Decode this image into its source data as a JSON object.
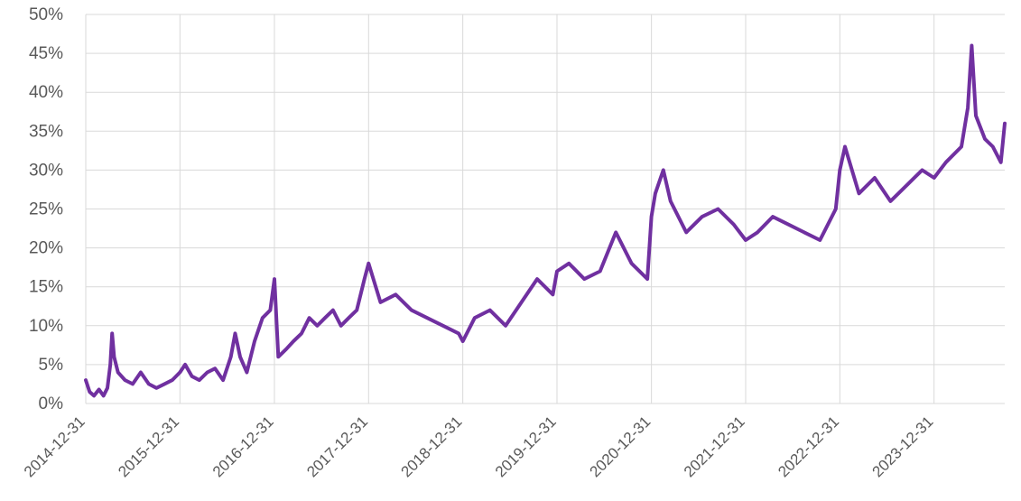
{
  "chart_data": {
    "type": "line",
    "title": "",
    "xlabel": "",
    "ylabel": "",
    "x_tick_labels": [
      "2014-12-31",
      "2015-12-31",
      "2016-12-31",
      "2017-12-31",
      "2018-12-31",
      "2019-12-31",
      "2020-12-31",
      "2021-12-31",
      "2022-12-31",
      "2023-12-31"
    ],
    "y_tick_labels": [
      "0%",
      "5%",
      "10%",
      "15%",
      "20%",
      "25%",
      "30%",
      "35%",
      "40%",
      "45%",
      "50%"
    ],
    "xlim": [
      "2014-12-31",
      "2024-09-30"
    ],
    "ylim": [
      0,
      50
    ],
    "grid": true,
    "legend": "none",
    "series": [
      {
        "color": "#7030a0",
        "points": [
          [
            "2014-12-31",
            3
          ],
          [
            "2015-01-15",
            1.5
          ],
          [
            "2015-02-01",
            1
          ],
          [
            "2015-02-20",
            1.8
          ],
          [
            "2015-03-10",
            1
          ],
          [
            "2015-03-25",
            2
          ],
          [
            "2015-04-05",
            5
          ],
          [
            "2015-04-12",
            9
          ],
          [
            "2015-04-20",
            6
          ],
          [
            "2015-05-05",
            4
          ],
          [
            "2015-06-01",
            3
          ],
          [
            "2015-07-01",
            2.5
          ],
          [
            "2015-08-01",
            4
          ],
          [
            "2015-09-01",
            2.5
          ],
          [
            "2015-10-01",
            2
          ],
          [
            "2015-11-01",
            2.5
          ],
          [
            "2015-12-01",
            3
          ],
          [
            "2015-12-31",
            4
          ],
          [
            "2016-01-20",
            5
          ],
          [
            "2016-02-15",
            3.5
          ],
          [
            "2016-03-15",
            3
          ],
          [
            "2016-04-15",
            4
          ],
          [
            "2016-05-15",
            4.5
          ],
          [
            "2016-06-15",
            3
          ],
          [
            "2016-07-15",
            6
          ],
          [
            "2016-08-01",
            9
          ],
          [
            "2016-08-20",
            6
          ],
          [
            "2016-09-15",
            4
          ],
          [
            "2016-10-15",
            8
          ],
          [
            "2016-11-15",
            11
          ],
          [
            "2016-12-15",
            12
          ],
          [
            "2016-12-31",
            16
          ],
          [
            "2017-01-15",
            6
          ],
          [
            "2017-02-15",
            7
          ],
          [
            "2017-03-15",
            8
          ],
          [
            "2017-04-15",
            9
          ],
          [
            "2017-05-15",
            11
          ],
          [
            "2017-06-15",
            10
          ],
          [
            "2017-07-15",
            11
          ],
          [
            "2017-08-15",
            12
          ],
          [
            "2017-09-15",
            10
          ],
          [
            "2017-10-15",
            11
          ],
          [
            "2017-11-15",
            12
          ],
          [
            "2017-12-15",
            16
          ],
          [
            "2017-12-31",
            18
          ],
          [
            "2018-02-15",
            13
          ],
          [
            "2018-04-15",
            14
          ],
          [
            "2018-06-15",
            12
          ],
          [
            "2018-08-15",
            11
          ],
          [
            "2018-10-15",
            10
          ],
          [
            "2018-12-15",
            9
          ],
          [
            "2018-12-31",
            8
          ],
          [
            "2019-02-15",
            11
          ],
          [
            "2019-04-15",
            12
          ],
          [
            "2019-06-15",
            10
          ],
          [
            "2019-08-15",
            13
          ],
          [
            "2019-10-15",
            16
          ],
          [
            "2019-12-15",
            14
          ],
          [
            "2019-12-31",
            17
          ],
          [
            "2020-02-15",
            18
          ],
          [
            "2020-04-15",
            16
          ],
          [
            "2020-06-15",
            17
          ],
          [
            "2020-08-15",
            22
          ],
          [
            "2020-10-15",
            18
          ],
          [
            "2020-12-15",
            16
          ],
          [
            "2020-12-31",
            24
          ],
          [
            "2021-01-15",
            27
          ],
          [
            "2021-02-15",
            30
          ],
          [
            "2021-03-15",
            26
          ],
          [
            "2021-05-15",
            22
          ],
          [
            "2021-07-15",
            24
          ],
          [
            "2021-09-15",
            25
          ],
          [
            "2021-11-15",
            23
          ],
          [
            "2021-12-31",
            21
          ],
          [
            "2022-02-15",
            22
          ],
          [
            "2022-04-15",
            24
          ],
          [
            "2022-06-15",
            23
          ],
          [
            "2022-08-15",
            22
          ],
          [
            "2022-10-15",
            21
          ],
          [
            "2022-12-15",
            25
          ],
          [
            "2022-12-31",
            30
          ],
          [
            "2023-01-20",
            33
          ],
          [
            "2023-03-15",
            27
          ],
          [
            "2023-05-15",
            29
          ],
          [
            "2023-07-15",
            26
          ],
          [
            "2023-09-15",
            28
          ],
          [
            "2023-11-15",
            30
          ],
          [
            "2023-12-31",
            29
          ],
          [
            "2024-02-15",
            31
          ],
          [
            "2024-04-15",
            33
          ],
          [
            "2024-05-10",
            38
          ],
          [
            "2024-05-25",
            46
          ],
          [
            "2024-06-10",
            37
          ],
          [
            "2024-07-15",
            34
          ],
          [
            "2024-08-15",
            33
          ],
          [
            "2024-09-15",
            31
          ],
          [
            "2024-09-30",
            36
          ]
        ]
      }
    ]
  }
}
